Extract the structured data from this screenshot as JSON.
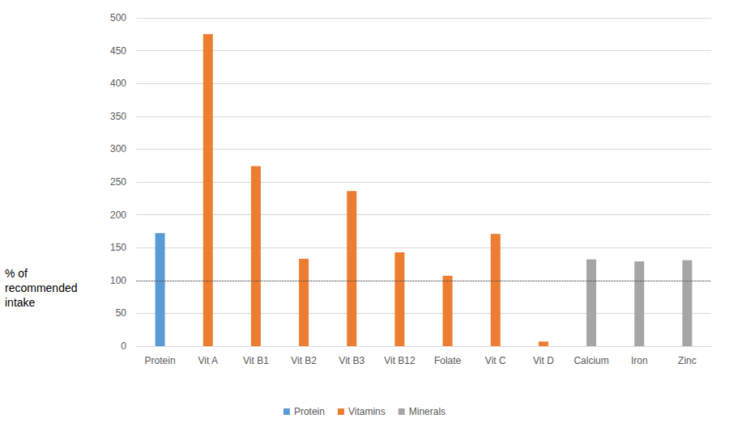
{
  "chart_data": {
    "type": "bar",
    "categories": [
      "Protein",
      "Vit A",
      "Vit B1",
      "Vit B2",
      "Vit B3",
      "Vit B12",
      "Folate",
      "Vit C",
      "Vit D",
      "Calcium",
      "Iron",
      "Zinc"
    ],
    "series": [
      {
        "name": "Protein",
        "color": "#5b9bd5",
        "values": [
          172,
          null,
          null,
          null,
          null,
          null,
          null,
          null,
          null,
          null,
          null,
          null
        ]
      },
      {
        "name": "Vitamins",
        "color": "#ed7d31",
        "values": [
          null,
          475,
          274,
          133,
          236,
          143,
          107,
          171,
          7,
          null,
          null,
          null
        ]
      },
      {
        "name": "Minerals",
        "color": "#a5a5a5",
        "values": [
          null,
          null,
          null,
          null,
          null,
          null,
          null,
          null,
          null,
          132,
          129,
          131
        ]
      }
    ],
    "ylim": [
      0,
      500
    ],
    "yticks": [
      0,
      50,
      100,
      150,
      200,
      250,
      300,
      350,
      400,
      450,
      500
    ],
    "grid": true,
    "legend": "bottom",
    "annotations": [
      {
        "text": "% of recommended intake",
        "y": 100,
        "line_style": "dotted"
      }
    ]
  }
}
